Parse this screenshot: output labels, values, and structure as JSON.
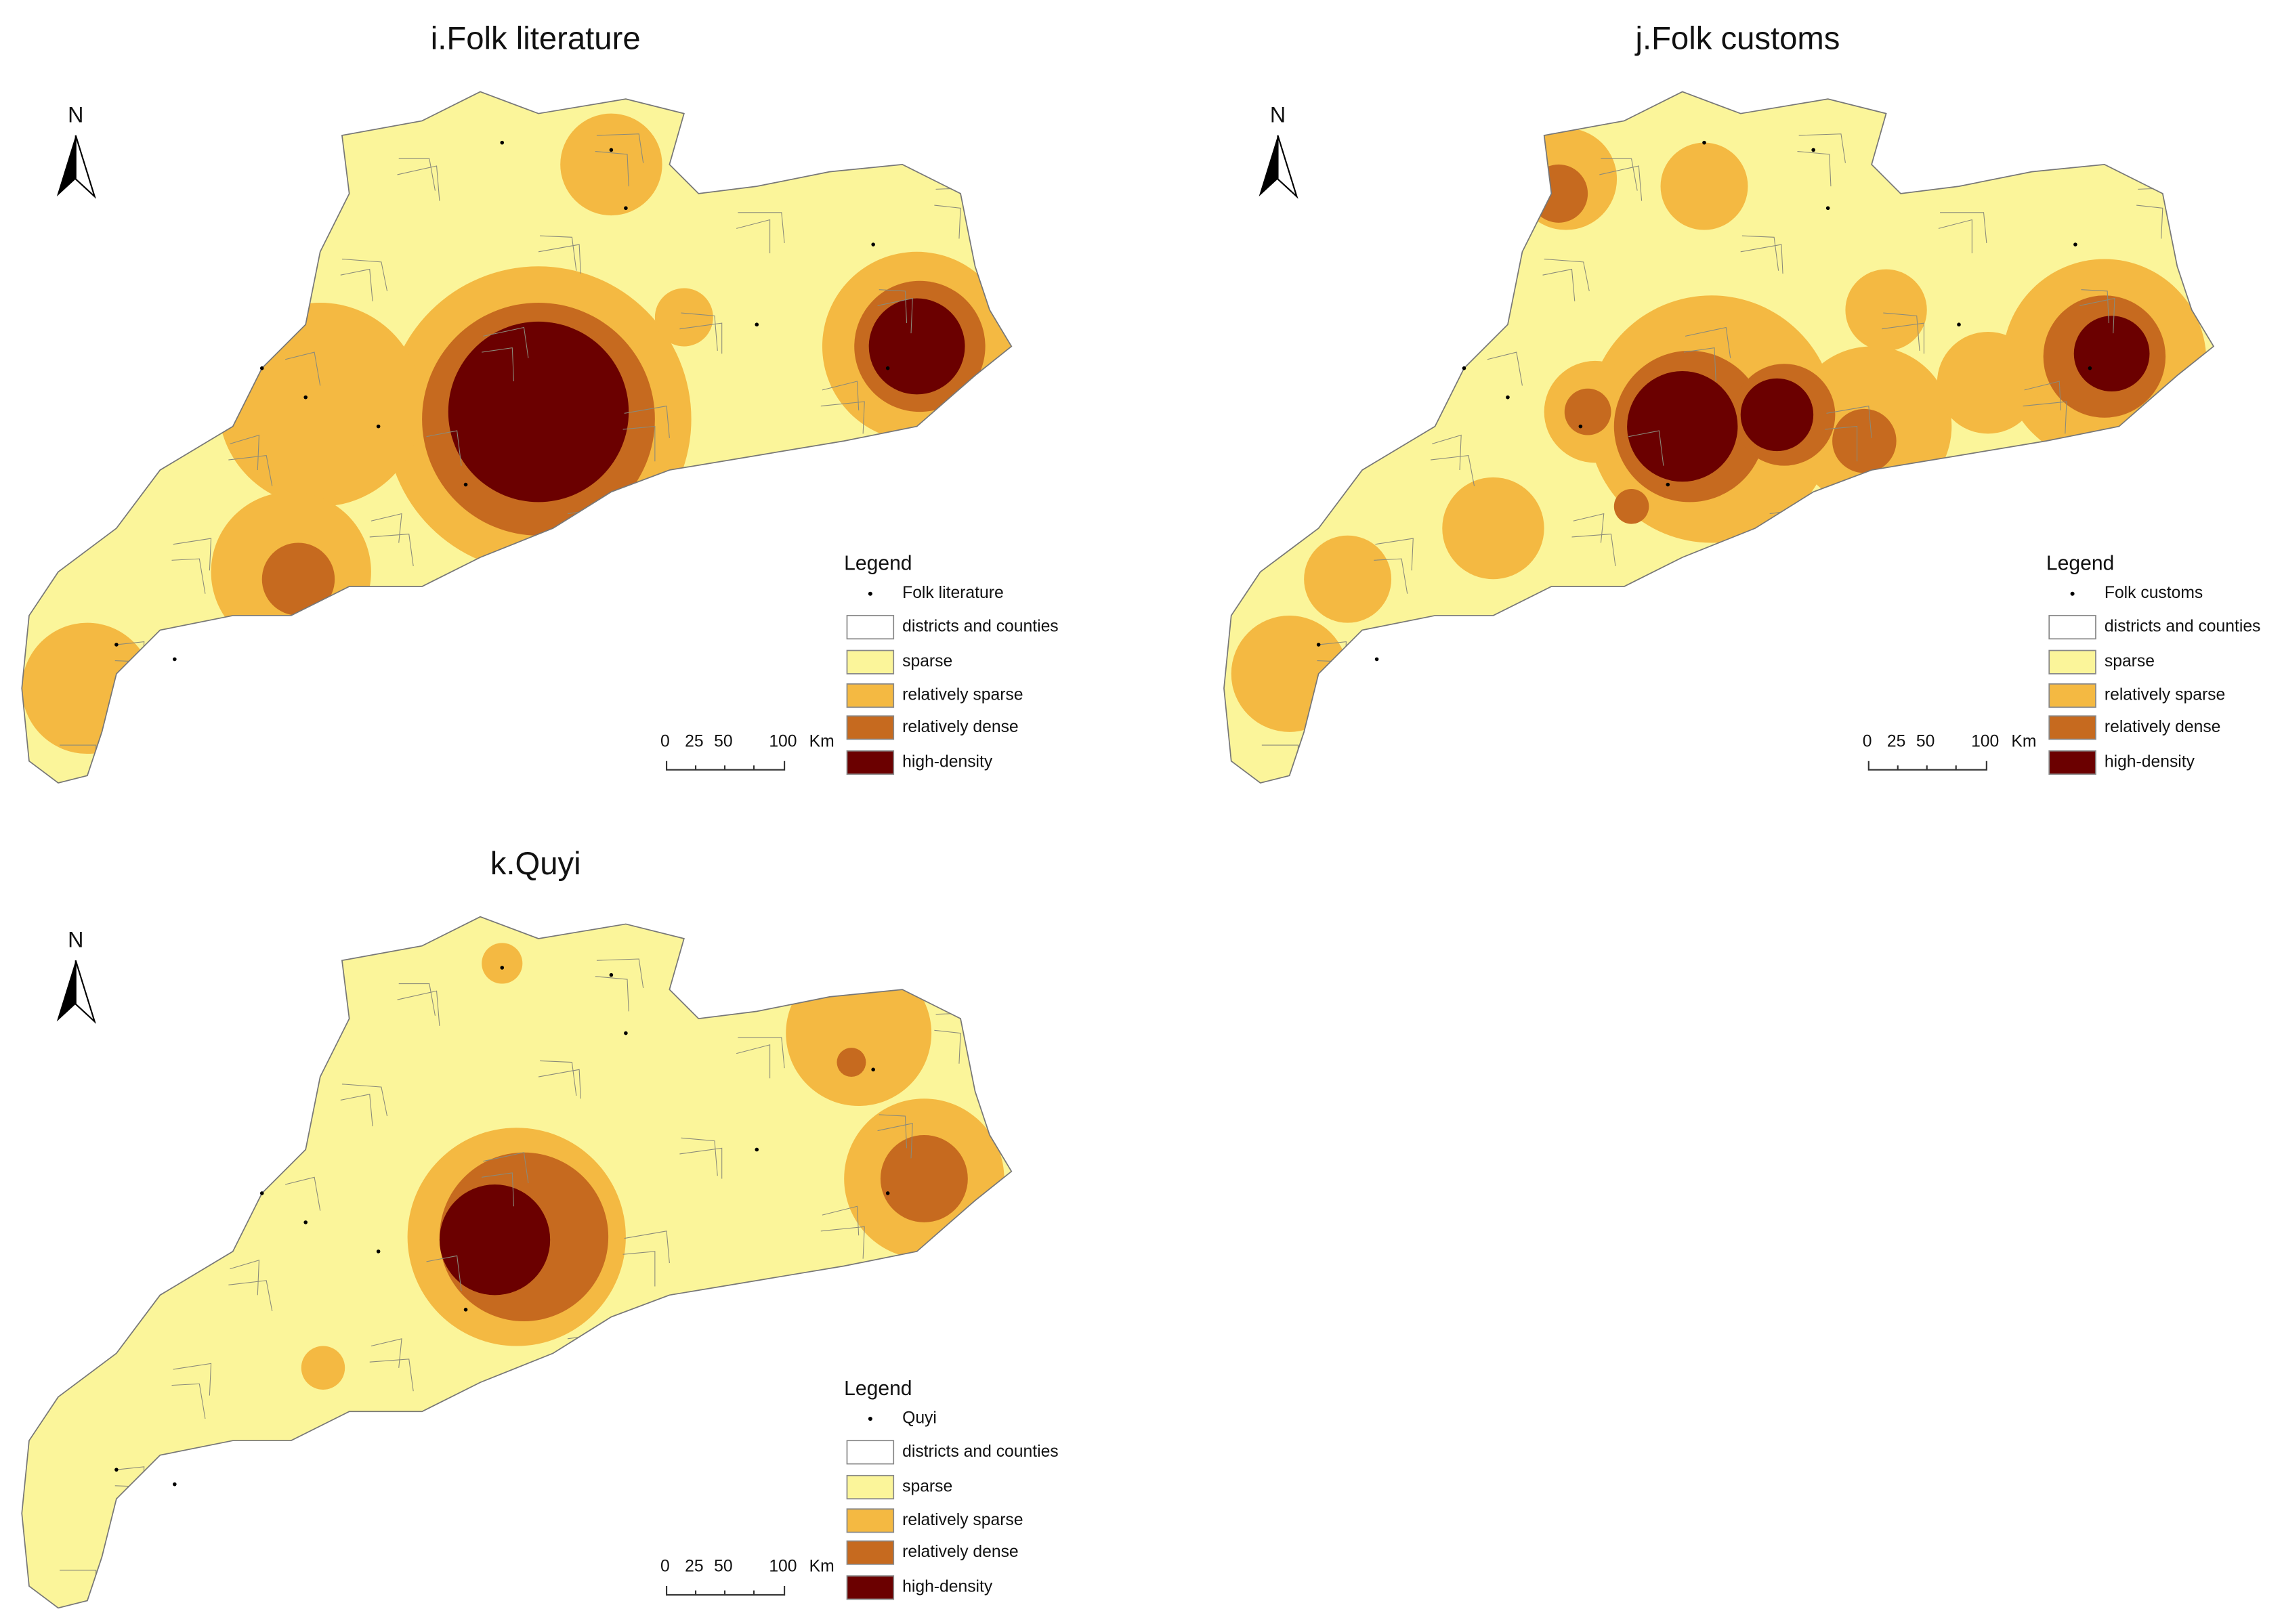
{
  "panels": [
    {
      "title": "i.Folk literature",
      "north": "N",
      "legend": {
        "title": "Legend",
        "items": [
          "Folk literature",
          "districts and counties",
          "sparse",
          "relatively sparse",
          "relatively dense",
          "high-density"
        ]
      },
      "scale": [
        "0",
        "25",
        "50",
        "100",
        "Km"
      ]
    },
    {
      "title": "j.Folk customs",
      "north": "N",
      "legend": {
        "title": "Legend",
        "items": [
          "Folk customs",
          "districts and counties",
          "sparse",
          "relatively sparse",
          "relatively dense",
          "high-density"
        ]
      },
      "scale": [
        "0",
        "25",
        "50",
        "100",
        "Km"
      ]
    },
    {
      "title": "k.Quyi",
      "north": "N",
      "legend": {
        "title": "Legend",
        "items": [
          "Quyi",
          "districts and counties",
          "sparse",
          "relatively sparse",
          "relatively dense",
          "high-density"
        ]
      },
      "scale": [
        "0",
        "25",
        "50",
        "100",
        "Km"
      ]
    }
  ]
}
